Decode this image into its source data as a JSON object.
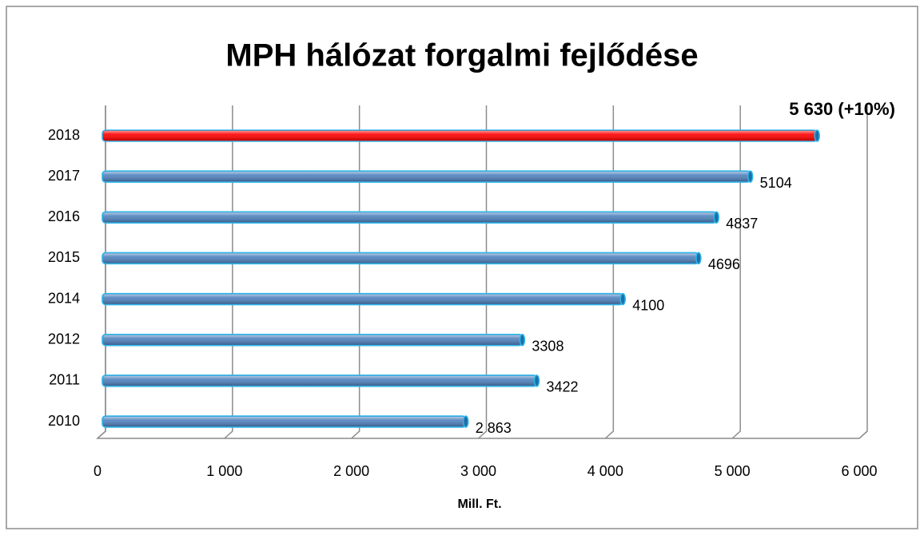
{
  "chart_data": {
    "type": "bar",
    "orientation": "horizontal",
    "title": "MPH hálózat forgalmi fejlődése",
    "x_label": "Mill. Ft.",
    "categories": [
      "2010",
      "2011",
      "2012",
      "2014",
      "2015",
      "2016",
      "2017",
      "2018"
    ],
    "values": [
      2863,
      3422,
      3308,
      4100,
      4696,
      4837,
      5104,
      5630
    ],
    "value_labels": [
      "2 863",
      "3422",
      "3308",
      "4100",
      "4696",
      "4837",
      "5104",
      "5 630 (+10%)"
    ],
    "colors": [
      "#4f81bd",
      "#4f81bd",
      "#4f81bd",
      "#4f81bd",
      "#4f81bd",
      "#4f81bd",
      "#4f81bd",
      "#ff0000"
    ],
    "value_label_colors": [
      "#000000",
      "#000000",
      "#000000",
      "#000000",
      "#000000",
      "#000000",
      "#000000",
      "#ff0000"
    ],
    "xlim": [
      0,
      6000
    ],
    "xticks": [
      0,
      {
        "value": 1000,
        "label": "1 000"
      },
      {
        "value": 2000,
        "label": "2 000"
      },
      {
        "value": 3000,
        "label": "3 000"
      },
      {
        "value": 4000,
        "label": "4 000"
      },
      {
        "value": 5000,
        "label": "5 000"
      },
      {
        "value": 6000,
        "label": "6 000"
      }
    ],
    "grid": true
  }
}
